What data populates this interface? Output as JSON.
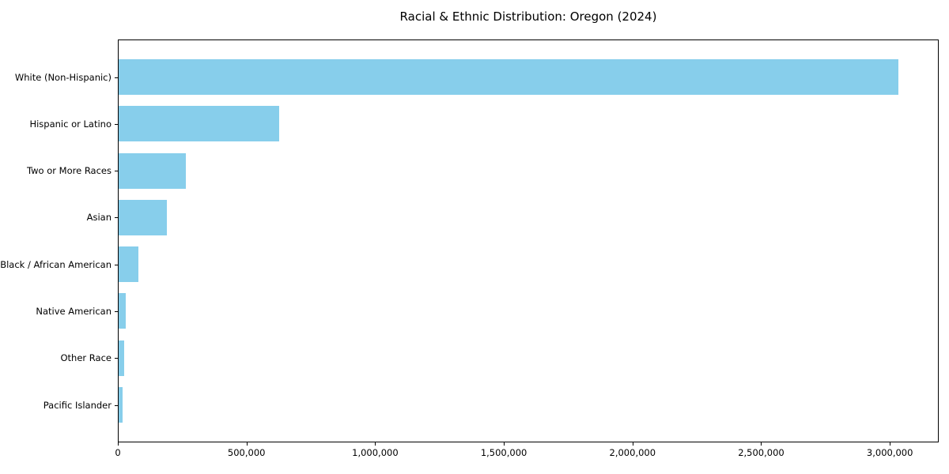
{
  "chart_data": {
    "type": "bar",
    "orientation": "horizontal",
    "title": "Racial & Ethnic Distribution: Oregon (2024)",
    "categories": [
      "White (Non-Hispanic)",
      "Hispanic or Latino",
      "Two or More Races",
      "Asian",
      "Black / African American",
      "Native American",
      "Other Race",
      "Pacific Islander"
    ],
    "values": [
      3030000,
      624000,
      260000,
      188000,
      78000,
      27000,
      22000,
      16000
    ],
    "xlabel": "",
    "ylabel": "",
    "xlim": [
      0,
      3190000
    ],
    "x_ticks": [
      0,
      500000,
      1000000,
      1500000,
      2000000,
      2500000,
      3000000
    ],
    "x_tick_labels": [
      "0",
      "500,000",
      "1,000,000",
      "1,500,000",
      "2,000,000",
      "2,500,000",
      "3,000,000"
    ],
    "bar_color": "#87CEEB",
    "axis_color": "#000000",
    "text_color": "#000000",
    "background_color": "#ffffff",
    "grid": false,
    "legend": null,
    "sorted": "descending, largest at top"
  }
}
